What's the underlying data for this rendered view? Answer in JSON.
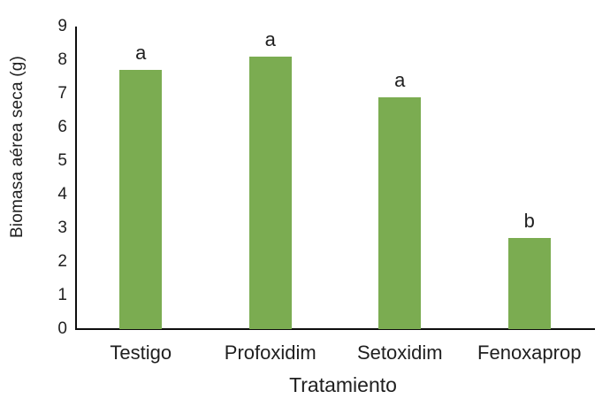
{
  "chart_data": {
    "type": "bar",
    "title": "",
    "xlabel": "Tratamiento",
    "ylabel": "Biomasa aérea seca (g)",
    "categories": [
      "Testigo",
      "Profoxidim",
      "Setoxidim",
      "Fenoxaprop"
    ],
    "values": [
      7.7,
      8.1,
      6.9,
      2.7
    ],
    "bar_labels": [
      "a",
      "a",
      "a",
      "b"
    ],
    "ylim": [
      0,
      9
    ],
    "yticks": [
      0,
      1,
      2,
      3,
      4,
      5,
      6,
      7,
      8,
      9
    ],
    "bar_color": "#7BAC51",
    "axis_color": "#0d0d0d",
    "text_color": "#1f1f1f",
    "grid": false,
    "legend": false
  }
}
